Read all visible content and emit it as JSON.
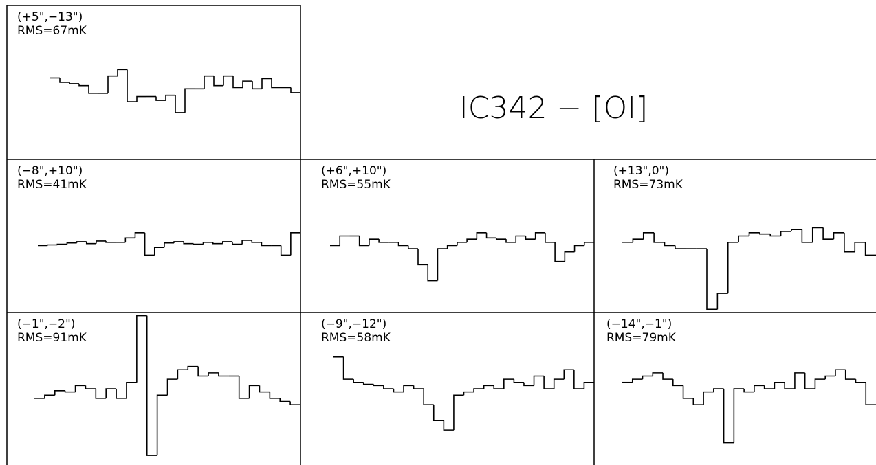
{
  "title": "IC342 − [OI]",
  "chart_data": [
    {
      "type": "step",
      "label": "(+5\",−13\")",
      "rms": "RMS=67mK",
      "ylim": [
        -105,
        135
      ],
      "values": [
        22,
        15,
        13,
        10,
        -2,
        -2,
        25,
        35,
        -15,
        -7,
        -7,
        -13,
        -5,
        -32,
        5,
        5,
        25,
        10,
        25,
        7,
        17,
        5,
        21,
        7,
        7,
        -1
      ]
    },
    {
      "type": "step",
      "label": "(−8\",+10\")",
      "rms": "RMS=41mK",
      "ylim": [
        -105,
        135
      ],
      "values": [
        0,
        1,
        2,
        4,
        6,
        3,
        7,
        5,
        5,
        12,
        20,
        -15,
        -3,
        4,
        6,
        3,
        2,
        5,
        3,
        6,
        2,
        8,
        5,
        0,
        0,
        -15,
        20
      ]
    },
    {
      "type": "step",
      "label": "(+6\",+10\")",
      "rms": "RMS=55mK",
      "ylim": [
        -105,
        135
      ],
      "values": [
        0,
        15,
        15,
        0,
        10,
        5,
        5,
        0,
        -5,
        -30,
        -55,
        -5,
        0,
        5,
        10,
        20,
        12,
        10,
        5,
        15,
        10,
        20,
        5,
        -25,
        -10,
        0,
        5
      ]
    },
    {
      "type": "step",
      "label": "(+13\",0\")",
      "rms": "RMS=73mK",
      "ylim": [
        -105,
        135
      ],
      "values": [
        5,
        10,
        20,
        5,
        0,
        -5,
        -5,
        -5,
        -100,
        -75,
        5,
        15,
        20,
        18,
        15,
        22,
        25,
        5,
        28,
        10,
        20,
        -10,
        5,
        -15
      ]
    },
    {
      "type": "step",
      "label": "(−1\",−2\")",
      "rms": "RMS=91mK",
      "ylim": [
        -105,
        135
      ],
      "values": [
        0,
        5,
        12,
        10,
        20,
        15,
        0,
        15,
        0,
        25,
        130,
        -90,
        5,
        30,
        45,
        50,
        35,
        40,
        35,
        35,
        0,
        20,
        10,
        0,
        -5,
        -10
      ]
    },
    {
      "type": "step",
      "label": "(−9\",−12\")",
      "rms": "RMS=58mK",
      "ylim": [
        -105,
        135
      ],
      "values": [
        65,
        30,
        25,
        22,
        20,
        15,
        10,
        20,
        15,
        -10,
        -35,
        -50,
        5,
        10,
        15,
        20,
        15,
        30,
        25,
        20,
        35,
        15,
        30,
        45,
        15,
        25
      ]
    },
    {
      "type": "step",
      "label": "(−14\",−1\")",
      "rms": "RMS=79mK",
      "ylim": [
        -105,
        135
      ],
      "values": [
        25,
        30,
        35,
        40,
        30,
        20,
        0,
        -10,
        10,
        15,
        -70,
        15,
        10,
        20,
        15,
        25,
        15,
        40,
        15,
        30,
        35,
        45,
        30,
        25,
        -10
      ]
    }
  ]
}
